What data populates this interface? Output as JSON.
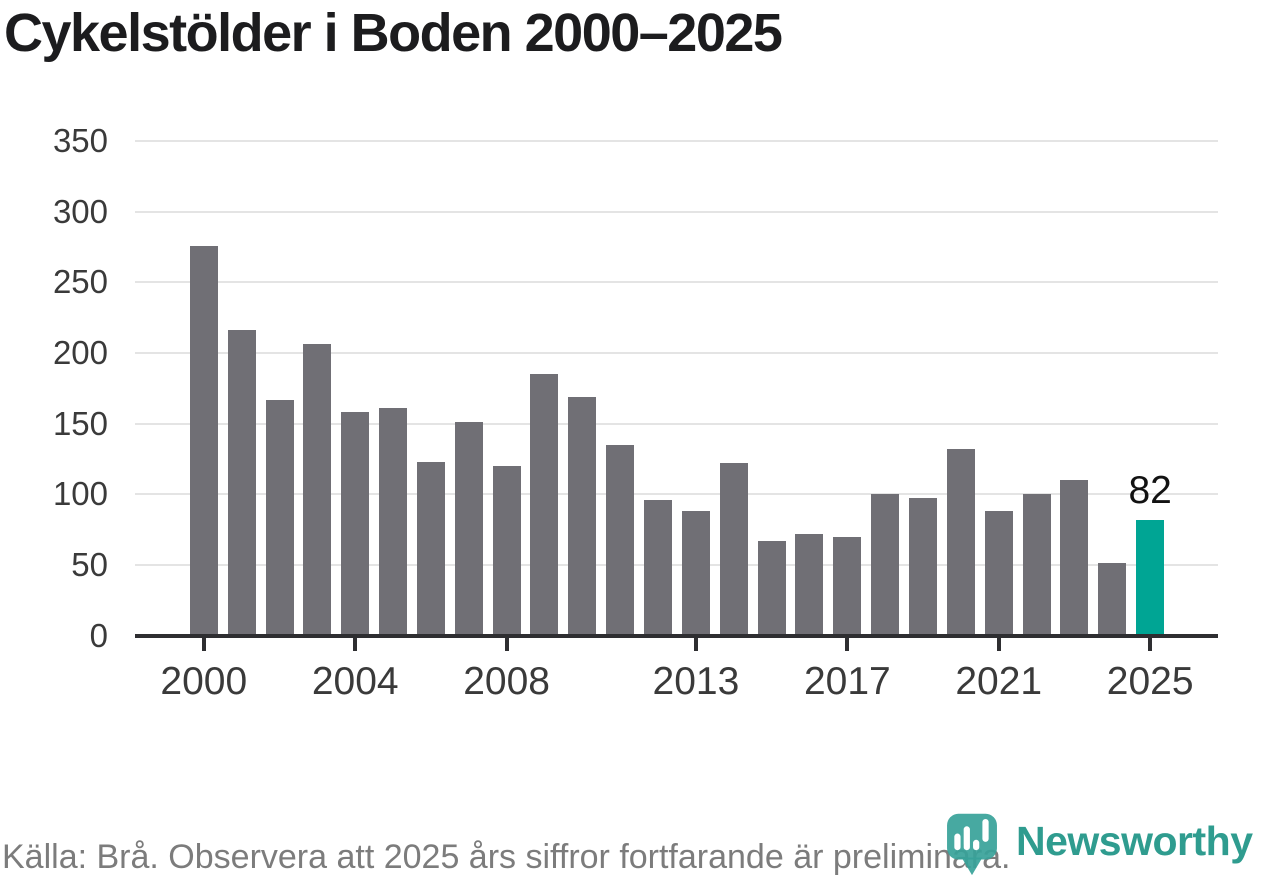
{
  "title": "Cykelstölder i Boden 2000–2025",
  "footer": {
    "source_note": "Källa: Brå. Observera att 2025 års siffror fortfarande är preliminära."
  },
  "branding": {
    "logo_text": "Newsworthy",
    "logo_icon": "newsworthy-barchart-pin-icon",
    "logo_color": "#2f9c8f"
  },
  "colors": {
    "bar": "#706f75",
    "highlight_bar": "#00a594",
    "axis": "#2e2e31",
    "gridline": "#e4e4e4",
    "title_text": "#1c1c1e",
    "tick_label": "#3a3a3a",
    "footer_text": "#7c7c7c",
    "value_label": "#121212"
  },
  "chart_data": {
    "type": "bar",
    "title": "Cykelstölder i Boden 2000–2025",
    "xlabel": "",
    "ylabel": "",
    "x": [
      2000,
      2001,
      2002,
      2003,
      2004,
      2005,
      2006,
      2007,
      2008,
      2009,
      2010,
      2011,
      2012,
      2013,
      2014,
      2015,
      2016,
      2017,
      2018,
      2019,
      2020,
      2021,
      2022,
      2023,
      2024,
      2025
    ],
    "values": [
      276,
      216,
      167,
      206,
      158,
      161,
      123,
      151,
      120,
      185,
      169,
      135,
      96,
      88,
      122,
      67,
      72,
      70,
      100,
      97,
      132,
      88,
      100,
      110,
      51,
      82
    ],
    "highlight_index": 25,
    "highlight_label": "82",
    "ylim": [
      0,
      350
    ],
    "yticks": [
      0,
      50,
      100,
      150,
      200,
      250,
      300,
      350
    ],
    "xticks": [
      2000,
      2004,
      2008,
      2013,
      2017,
      2021,
      2025
    ],
    "grid": "horizontal",
    "legend": "none"
  }
}
